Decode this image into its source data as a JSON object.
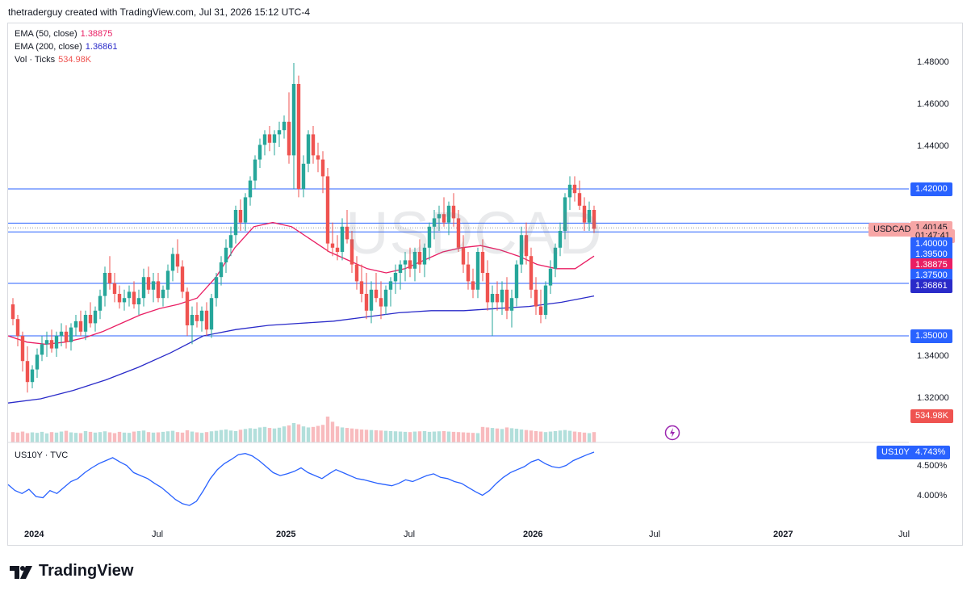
{
  "header": {
    "text": "thetraderguy created with TradingView.com, Jul 31, 2026 15:12 UTC-4"
  },
  "symbol": {
    "watermark": "USDCAD",
    "badge": "USDCAD"
  },
  "legend": [
    {
      "label": "EMA (50, close)",
      "value": "1.38875",
      "color": "#e91e63"
    },
    {
      "label": "EMA (200, close)",
      "value": "1.36861",
      "color": "#2a2bc9"
    },
    {
      "label": "Vol · Ticks",
      "value": "534.98K",
      "color": "#ef5350"
    }
  ],
  "price_axis": {
    "ticks": [
      "1.48000",
      "1.46000",
      "1.44000",
      "1.34000",
      "1.32000"
    ],
    "tick_values": [
      1.48,
      1.46,
      1.44,
      1.34,
      1.32
    ],
    "badges": [
      {
        "label": "1.42000",
        "value": 1.42,
        "color": "#2962ff"
      },
      {
        "label": "1.40145",
        "value": 1.40145,
        "color": "#f7a6a6",
        "text_color": "#131722"
      },
      {
        "label": "01:47:41",
        "value": 1.3978,
        "color": "#f7a6a6",
        "text_color": "#131722"
      },
      {
        "label": "1.40000",
        "value": 1.394,
        "color": "#2962ff"
      },
      {
        "label": "1.39500",
        "value": 1.389,
        "color": "#2962ff"
      },
      {
        "label": "1.38875",
        "value": 1.384,
        "color": "#e91e63"
      },
      {
        "label": "1.37500",
        "value": 1.379,
        "color": "#2962ff"
      },
      {
        "label": "1.36861",
        "value": 1.374,
        "color": "#2a2bc9"
      },
      {
        "label": "1.35000",
        "value": 1.35,
        "color": "#2962ff"
      }
    ],
    "volume_badge": {
      "label": "534.98K",
      "color": "#ef5350"
    }
  },
  "hlines": [
    1.42,
    1.4037,
    1.3995,
    1.375,
    1.35
  ],
  "indicator": {
    "label": "US10Y · TVC",
    "badge": "US10Y",
    "badge_value": "4.743%",
    "ticks": [
      "4.500%",
      "4.000%"
    ],
    "tick_values": [
      4.5,
      4.0
    ]
  },
  "time_axis": [
    {
      "label": "2024",
      "bold": true
    },
    {
      "label": "Jul",
      "bold": false
    },
    {
      "label": "2025",
      "bold": true
    },
    {
      "label": "Jul",
      "bold": false
    },
    {
      "label": "2026",
      "bold": true
    },
    {
      "label": "Jul",
      "bold": false
    },
    {
      "label": "2027",
      "bold": true
    },
    {
      "label": "Jul",
      "bold": false
    }
  ],
  "footer": {
    "brand": "TradingView"
  },
  "colors": {
    "up": "#26a69a",
    "down": "#ef5350",
    "up_vol": "#b2dfdb",
    "down_vol": "#f8bbbe",
    "ema50": "#e91e63",
    "ema200": "#2a2bc9",
    "us10y": "#2962ff"
  },
  "chart_data": {
    "type": "candlestick",
    "series": [
      {
        "name": "USDCAD",
        "values": [
          [
            1.365,
            1.368,
            1.355,
            1.358
          ],
          [
            1.358,
            1.36,
            1.345,
            1.35
          ],
          [
            1.35,
            1.352,
            1.333,
            1.338
          ],
          [
            1.338,
            1.345,
            1.323,
            1.328
          ],
          [
            1.328,
            1.336,
            1.325,
            1.334
          ],
          [
            1.334,
            1.344,
            1.33,
            1.341
          ],
          [
            1.341,
            1.35,
            1.338,
            1.346
          ],
          [
            1.346,
            1.352,
            1.34,
            1.348
          ],
          [
            1.348,
            1.353,
            1.342,
            1.344
          ],
          [
            1.344,
            1.352,
            1.34,
            1.35
          ],
          [
            1.35,
            1.356,
            1.345,
            1.352
          ],
          [
            1.352,
            1.355,
            1.344,
            1.347
          ],
          [
            1.347,
            1.356,
            1.343,
            1.354
          ],
          [
            1.354,
            1.36,
            1.35,
            1.357
          ],
          [
            1.357,
            1.362,
            1.35,
            1.352
          ],
          [
            1.352,
            1.362,
            1.348,
            1.36
          ],
          [
            1.36,
            1.366,
            1.354,
            1.356
          ],
          [
            1.356,
            1.364,
            1.352,
            1.362
          ],
          [
            1.362,
            1.372,
            1.358,
            1.369
          ],
          [
            1.369,
            1.383,
            1.364,
            1.38
          ],
          [
            1.38,
            1.388,
            1.372,
            1.375
          ],
          [
            1.375,
            1.38,
            1.366,
            1.37
          ],
          [
            1.37,
            1.374,
            1.363,
            1.366
          ],
          [
            1.366,
            1.372,
            1.362,
            1.368
          ],
          [
            1.368,
            1.374,
            1.364,
            1.371
          ],
          [
            1.371,
            1.376,
            1.363,
            1.365
          ],
          [
            1.365,
            1.372,
            1.36,
            1.368
          ],
          [
            1.368,
            1.382,
            1.364,
            1.378
          ],
          [
            1.378,
            1.383,
            1.37,
            1.372
          ],
          [
            1.372,
            1.38,
            1.366,
            1.376
          ],
          [
            1.376,
            1.38,
            1.366,
            1.368
          ],
          [
            1.368,
            1.374,
            1.364,
            1.372
          ],
          [
            1.372,
            1.384,
            1.368,
            1.381
          ],
          [
            1.381,
            1.392,
            1.376,
            1.389
          ],
          [
            1.389,
            1.396,
            1.38,
            1.383
          ],
          [
            1.383,
            1.386,
            1.368,
            1.371
          ],
          [
            1.371,
            1.373,
            1.35,
            1.355
          ],
          [
            1.355,
            1.364,
            1.346,
            1.36
          ],
          [
            1.36,
            1.366,
            1.354,
            1.357
          ],
          [
            1.357,
            1.364,
            1.352,
            1.362
          ],
          [
            1.362,
            1.366,
            1.35,
            1.353
          ],
          [
            1.353,
            1.37,
            1.349,
            1.368
          ],
          [
            1.368,
            1.38,
            1.364,
            1.378
          ],
          [
            1.378,
            1.388,
            1.374,
            1.385
          ],
          [
            1.385,
            1.396,
            1.38,
            1.392
          ],
          [
            1.392,
            1.402,
            1.388,
            1.398
          ],
          [
            1.398,
            1.412,
            1.394,
            1.41
          ],
          [
            1.41,
            1.415,
            1.4,
            1.404
          ],
          [
            1.404,
            1.418,
            1.4,
            1.416
          ],
          [
            1.416,
            1.426,
            1.412,
            1.424
          ],
          [
            1.424,
            1.436,
            1.42,
            1.434
          ],
          [
            1.434,
            1.444,
            1.43,
            1.441
          ],
          [
            1.441,
            1.448,
            1.436,
            1.446
          ],
          [
            1.446,
            1.45,
            1.438,
            1.442
          ],
          [
            1.442,
            1.448,
            1.436,
            1.446
          ],
          [
            1.446,
            1.452,
            1.44,
            1.448
          ],
          [
            1.448,
            1.455,
            1.444,
            1.452
          ],
          [
            1.452,
            1.466,
            1.432,
            1.436
          ],
          [
            1.436,
            1.48,
            1.42,
            1.47
          ],
          [
            1.47,
            1.474,
            1.416,
            1.42
          ],
          [
            1.42,
            1.436,
            1.416,
            1.432
          ],
          [
            1.432,
            1.448,
            1.428,
            1.446
          ],
          [
            1.446,
            1.45,
            1.432,
            1.436
          ],
          [
            1.436,
            1.442,
            1.428,
            1.434
          ],
          [
            1.434,
            1.438,
            1.418,
            1.426
          ],
          [
            1.426,
            1.43,
            1.39,
            1.394
          ],
          [
            1.394,
            1.404,
            1.388,
            1.392
          ],
          [
            1.392,
            1.398,
            1.386,
            1.39
          ],
          [
            1.39,
            1.406,
            1.386,
            1.402
          ],
          [
            1.402,
            1.41,
            1.394,
            1.396
          ],
          [
            1.396,
            1.4,
            1.38,
            1.384
          ],
          [
            1.384,
            1.388,
            1.372,
            1.376
          ],
          [
            1.376,
            1.384,
            1.366,
            1.37
          ],
          [
            1.37,
            1.38,
            1.358,
            1.362
          ],
          [
            1.362,
            1.376,
            1.356,
            1.372
          ],
          [
            1.372,
            1.38,
            1.366,
            1.368
          ],
          [
            1.368,
            1.376,
            1.358,
            1.364
          ],
          [
            1.364,
            1.374,
            1.36,
            1.372
          ],
          [
            1.372,
            1.378,
            1.364,
            1.376
          ],
          [
            1.376,
            1.384,
            1.37,
            1.38
          ],
          [
            1.38,
            1.386,
            1.372,
            1.384
          ],
          [
            1.384,
            1.39,
            1.376,
            1.386
          ],
          [
            1.386,
            1.392,
            1.378,
            1.382
          ],
          [
            1.382,
            1.392,
            1.376,
            1.39
          ],
          [
            1.39,
            1.396,
            1.38,
            1.384
          ],
          [
            1.384,
            1.394,
            1.378,
            1.392
          ],
          [
            1.392,
            1.404,
            1.386,
            1.402
          ],
          [
            1.402,
            1.41,
            1.396,
            1.406
          ],
          [
            1.406,
            1.412,
            1.4,
            1.408
          ],
          [
            1.408,
            1.416,
            1.402,
            1.404
          ],
          [
            1.404,
            1.414,
            1.398,
            1.412
          ],
          [
            1.412,
            1.418,
            1.402,
            1.406
          ],
          [
            1.406,
            1.41,
            1.39,
            1.392
          ],
          [
            1.392,
            1.398,
            1.38,
            1.384
          ],
          [
            1.384,
            1.39,
            1.372,
            1.376
          ],
          [
            1.376,
            1.382,
            1.368,
            1.372
          ],
          [
            1.372,
            1.392,
            1.368,
            1.39
          ],
          [
            1.39,
            1.396,
            1.376,
            1.38
          ],
          [
            1.38,
            1.386,
            1.362,
            1.366
          ],
          [
            1.366,
            1.374,
            1.35,
            1.37
          ],
          [
            1.37,
            1.376,
            1.362,
            1.366
          ],
          [
            1.366,
            1.376,
            1.36,
            1.372
          ],
          [
            1.372,
            1.378,
            1.358,
            1.362
          ],
          [
            1.362,
            1.372,
            1.354,
            1.368
          ],
          [
            1.368,
            1.386,
            1.364,
            1.384
          ],
          [
            1.384,
            1.402,
            1.38,
            1.398
          ],
          [
            1.398,
            1.404,
            1.384,
            1.388
          ],
          [
            1.388,
            1.392,
            1.368,
            1.372
          ],
          [
            1.372,
            1.378,
            1.36,
            1.364
          ],
          [
            1.364,
            1.372,
            1.356,
            1.36
          ],
          [
            1.36,
            1.376,
            1.358,
            1.374
          ],
          [
            1.374,
            1.386,
            1.37,
            1.382
          ],
          [
            1.382,
            1.394,
            1.378,
            1.392
          ],
          [
            1.392,
            1.404,
            1.388,
            1.4
          ],
          [
            1.4,
            1.418,
            1.396,
            1.416
          ],
          [
            1.416,
            1.426,
            1.41,
            1.422
          ],
          [
            1.422,
            1.426,
            1.414,
            1.418
          ],
          [
            1.418,
            1.424,
            1.41,
            1.412
          ],
          [
            1.412,
            1.416,
            1.4,
            1.404
          ],
          [
            1.404,
            1.414,
            1.4,
            1.41
          ],
          [
            1.41,
            1.412,
            1.399,
            1.401
          ]
        ]
      },
      {
        "name": "EMA (50, close)",
        "values": [
          1.35,
          1.347,
          1.346,
          1.347,
          1.349,
          1.352,
          1.356,
          1.36,
          1.363,
          1.365,
          1.368,
          1.378,
          1.392,
          1.402,
          1.404,
          1.402,
          1.396,
          1.39,
          1.386,
          1.382,
          1.38,
          1.382,
          1.386,
          1.39,
          1.392,
          1.393,
          1.391,
          1.388,
          1.384,
          1.382,
          1.382,
          1.388
        ]
      },
      {
        "name": "EMA (200, close)",
        "values": [
          1.318,
          1.32,
          1.324,
          1.329,
          1.335,
          1.342,
          1.35,
          1.353,
          1.355,
          1.356,
          1.357,
          1.359,
          1.361,
          1.362,
          1.362,
          1.363,
          1.364,
          1.366,
          1.369
        ]
      },
      {
        "name": "Vol · Ticks",
        "values": [
          40,
          38,
          42,
          36,
          39,
          37,
          41,
          35,
          40,
          38,
          42,
          45,
          39,
          37,
          36,
          44,
          41,
          38,
          40,
          43,
          39,
          36,
          41,
          38,
          37,
          42,
          44,
          46,
          40,
          38,
          39,
          41,
          43,
          45,
          40,
          38,
          47,
          42,
          39,
          37,
          40,
          43,
          45,
          48,
          50,
          46,
          44,
          49,
          52,
          55,
          53,
          58,
          60,
          56,
          54,
          57,
          62,
          66,
          75,
          70,
          62,
          58,
          60,
          64,
          68,
          100,
          80,
          62,
          58,
          56,
          54,
          52,
          50,
          49,
          48,
          47,
          46,
          45,
          44,
          43,
          42,
          41,
          40,
          42,
          43,
          44,
          41,
          42,
          43,
          44,
          42,
          41,
          40,
          39,
          38,
          37,
          36,
          60,
          58,
          56,
          54,
          52,
          58,
          55,
          53,
          50,
          48,
          46,
          44,
          42,
          40,
          42,
          44,
          46,
          48,
          45,
          42,
          40,
          38,
          36,
          40,
          38
        ]
      },
      {
        "name": "US10Y",
        "values": [
          4.2,
          4.1,
          4.05,
          4.12,
          4.0,
          3.98,
          4.1,
          4.05,
          4.15,
          4.25,
          4.3,
          4.4,
          4.48,
          4.55,
          4.6,
          4.65,
          4.58,
          4.52,
          4.4,
          4.35,
          4.3,
          4.22,
          4.15,
          4.05,
          3.95,
          3.88,
          3.85,
          3.92,
          4.1,
          4.3,
          4.45,
          4.55,
          4.62,
          4.7,
          4.72,
          4.68,
          4.6,
          4.5,
          4.4,
          4.35,
          4.38,
          4.42,
          4.48,
          4.4,
          4.35,
          4.3,
          4.38,
          4.45,
          4.4,
          4.35,
          4.3,
          4.28,
          4.25,
          4.22,
          4.2,
          4.18,
          4.22,
          4.28,
          4.25,
          4.3,
          4.35,
          4.38,
          4.32,
          4.3,
          4.25,
          4.22,
          4.15,
          4.08,
          4.02,
          4.1,
          4.22,
          4.32,
          4.4,
          4.45,
          4.5,
          4.58,
          4.62,
          4.55,
          4.5,
          4.48,
          4.52,
          4.6,
          4.65,
          4.7,
          4.743
        ]
      }
    ],
    "ylim": [
      1.31,
      1.49
    ],
    "xlabel": "",
    "ylabel": "",
    "grid": false,
    "legend_position": "top-left"
  }
}
